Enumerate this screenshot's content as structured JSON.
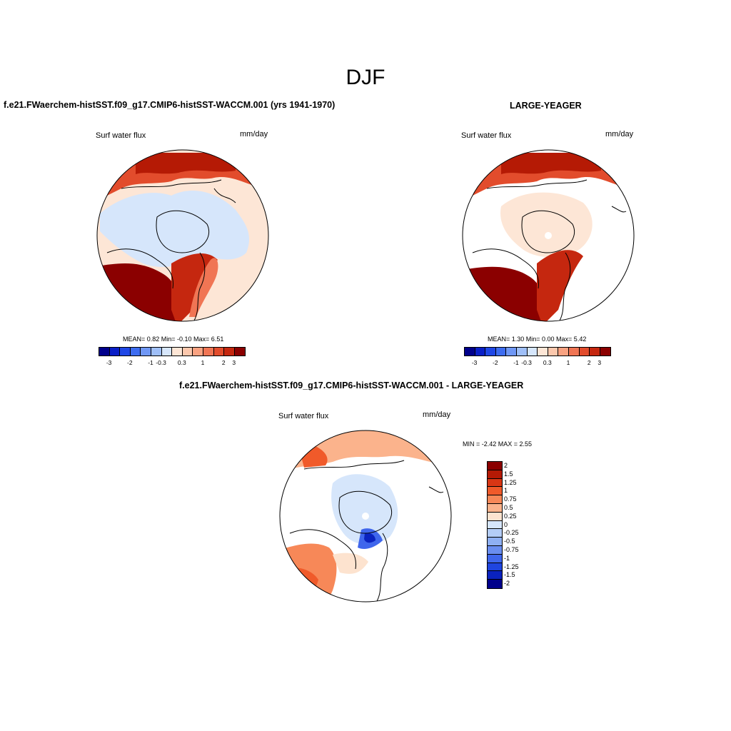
{
  "figure": {
    "title": "DJF"
  },
  "panels": [
    {
      "title": "f.e21.FWaerchem-histSST.f09_g17.CMIP6-histSST-WACCM.001 (yrs 1941-1970)",
      "variable": "Surf water flux",
      "units": "mm/day",
      "stats": "MEAN=   0.82  Min=   -0.10  Max=    6.51",
      "colorbar": {
        "colors": [
          "#00008b",
          "#0a1fc7",
          "#1f47e6",
          "#3d6cf0",
          "#6f97f5",
          "#9fbff8",
          "#d6e6fb",
          "#fde6d6",
          "#fcc8ad",
          "#f9a281",
          "#f07554",
          "#e24c2c",
          "#c5270f",
          "#8b0000"
        ],
        "ticks": [
          "-3",
          "-2",
          "-1",
          "-0.3",
          "0.3",
          "1",
          "2",
          "3"
        ]
      }
    },
    {
      "title": "LARGE-YEAGER",
      "variable": "Surf water flux",
      "units": "mm/day",
      "stats": "MEAN=   1.30  Min=    0.00  Max=    5.42",
      "colorbar": {
        "colors": [
          "#00008b",
          "#0a1fc7",
          "#1f47e6",
          "#3d6cf0",
          "#6f97f5",
          "#9fbff8",
          "#d6e6fb",
          "#fde6d6",
          "#fcc8ad",
          "#f9a281",
          "#f07554",
          "#e24c2c",
          "#c5270f",
          "#8b0000"
        ],
        "ticks": [
          "-3",
          "-2",
          "-1",
          "-0.3",
          "0.3",
          "1",
          "2",
          "3"
        ]
      }
    },
    {
      "title": "f.e21.FWaerchem-histSST.f09_g17.CMIP6-histSST-WACCM.001 - LARGE-YEAGER",
      "variable": "Surf water flux",
      "units": "mm/day",
      "stats": "MIN =  -2.42 MAX =   2.55",
      "colorbar": {
        "colors": [
          "#8b0000",
          "#b51a05",
          "#d93614",
          "#f05a2a",
          "#f78858",
          "#fbb38c",
          "#fde3cf",
          "#d6e6fb",
          "#b4cdf7",
          "#8fb0f3",
          "#6a8ef0",
          "#3f66ec",
          "#1f45e0",
          "#0a22bf",
          "#00008b"
        ],
        "ticks": [
          "2",
          "1.5",
          "1.25",
          "1",
          "0.75",
          "0.5",
          "0.25",
          "0",
          "-0.25",
          "-0.5",
          "-0.75",
          "-1",
          "-1.25",
          "-1.5",
          "-2"
        ]
      }
    }
  ]
}
